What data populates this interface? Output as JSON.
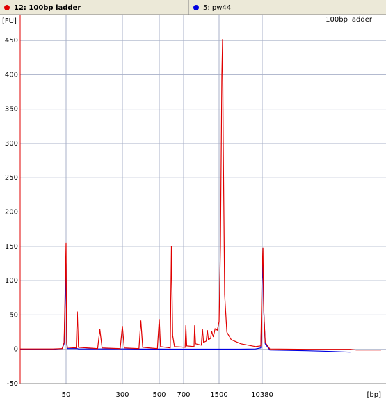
{
  "tabs": [
    {
      "label": "12: 100bp ladder",
      "color": "#e00000"
    },
    {
      "label": "5: pw44",
      "color": "#0000e0"
    }
  ],
  "chart_data": {
    "type": "line",
    "title": "100bp ladder",
    "x_label": "[bp]",
    "y_label": "[FU]",
    "x": [
      15,
      40,
      47,
      48.5,
      50,
      51.5,
      53,
      56,
      95,
      100,
      105,
      190,
      200,
      210,
      290,
      300,
      310,
      390,
      400,
      410,
      490,
      500,
      510,
      590,
      600,
      610,
      625,
      735,
      750,
      770,
      935,
      950,
      970,
      1100,
      1125,
      1150,
      1210,
      1235,
      1260,
      1310,
      1330,
      1370,
      1410,
      1460,
      1500,
      1790,
      2070,
      2220,
      2360,
      2650,
      3100,
      4000,
      6000,
      9000,
      10100,
      10240,
      10380,
      10440,
      10500,
      10620,
      11000,
      14000,
      16000,
      17500,
      18000,
      20000
    ],
    "series": [
      {
        "name": "12: 100bp ladder",
        "color": "#e00000",
        "values": [
          0.5,
          0.5,
          1,
          10,
          155,
          60,
          8,
          3,
          2,
          55,
          3,
          1,
          29,
          2,
          1,
          34,
          2,
          1,
          42,
          3,
          1,
          44,
          4,
          2,
          150,
          20,
          4,
          3,
          35,
          5,
          4,
          35,
          8,
          6,
          30,
          10,
          12,
          28,
          14,
          16,
          27,
          18,
          30,
          28,
          40,
          150,
          400,
          452,
          300,
          80,
          25,
          14,
          8,
          4,
          5,
          60,
          120,
          148,
          60,
          10,
          0.5,
          0,
          0,
          0,
          -1,
          -1
        ]
      },
      {
        "name": "5: pw44",
        "color": "#0000e0",
        "values": [
          0,
          0,
          1,
          8,
          125,
          50,
          10,
          1,
          1,
          1,
          0.5,
          0.5,
          0.5,
          0.5,
          0.5,
          0.5,
          0.5,
          0.3,
          0.3,
          0.3,
          0.3,
          0.3,
          0.3,
          0.2,
          0.2,
          0.2,
          0.2,
          0.2,
          0.2,
          0.2,
          0.2,
          0.2,
          0.2,
          0.2,
          0.2,
          0.2,
          0.2,
          0.2,
          0.2,
          0.2,
          0.2,
          0.2,
          0.2,
          0.2,
          0.2,
          0.2,
          0.2,
          0.2,
          0.2,
          0.2,
          0.2,
          0.2,
          0.2,
          0.5,
          2,
          40,
          100,
          125,
          60,
          8,
          -1,
          -2,
          -3,
          -4,
          null,
          null
        ]
      }
    ],
    "xlim": [
      15,
      20000
    ],
    "xticks": [
      50,
      300,
      500,
      700,
      1500,
      10380
    ],
    "ylim": [
      -50,
      480
    ],
    "yticks": [
      -50,
      0,
      50,
      100,
      150,
      200,
      250,
      300,
      350,
      400,
      450
    ],
    "grid": true
  }
}
